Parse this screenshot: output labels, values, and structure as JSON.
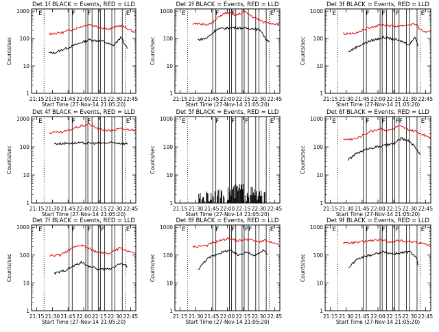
{
  "chart_data": [
    {
      "type": "line",
      "title": "Det 1f BLACK = Events, RED = LLD",
      "xlabel": "Start Time (27-Nov-14 21:05:20)",
      "ylabel": "Counts/sec",
      "x_tick_labels": [
        "21:15",
        "21:30",
        "21:45",
        "22:00",
        "22:15",
        "22:30",
        "22:45"
      ],
      "y_tick_labels": [
        "1",
        "10",
        "100",
        "1000"
      ],
      "ylim": [
        1,
        1200
      ],
      "scale": "log",
      "markers": [
        {
          "label": "E",
          "t": 0.06
        },
        {
          "label": "F",
          "t": 0.38
        },
        {
          "label": "F",
          "t": 0.53
        },
        {
          "label": "E",
          "t": 0.9
        }
      ],
      "series": [
        {
          "color": "#000000",
          "values": [
            [
              0.22,
              30
            ],
            [
              0.4,
              55
            ],
            [
              0.55,
              90
            ],
            [
              0.68,
              80
            ],
            [
              0.78,
              55
            ],
            [
              0.84,
              90
            ],
            [
              0.86,
              120
            ],
            [
              0.89,
              60
            ],
            [
              0.92,
              45
            ]
          ],
          "start": 0.17,
          "end": 0.92
        },
        {
          "color": "#e00000",
          "values": [
            [
              0.17,
              150
            ],
            [
              0.3,
              165
            ],
            [
              0.45,
              250
            ],
            [
              0.55,
              330
            ],
            [
              0.65,
              260
            ],
            [
              0.75,
              220
            ],
            [
              0.85,
              300
            ],
            [
              0.88,
              270
            ],
            [
              1.0,
              160
            ]
          ],
          "start": 0.17,
          "end": 1.0
        }
      ]
    },
    {
      "type": "line",
      "title": "Det 2f BLACK = Events, RED = LLD",
      "xlabel": "Start Time (27-Nov-14 21:05:20)",
      "ylabel": "Counts/sec",
      "x_tick_labels": [
        "21:15",
        "21:30",
        "21:45",
        "22:00",
        "22:15",
        "22:30",
        "22:45"
      ],
      "y_tick_labels": [
        "1",
        "10",
        "100",
        "1000"
      ],
      "ylim": [
        1,
        1200
      ],
      "scale": "log",
      "markers": [
        {
          "label": "E",
          "t": 0.06
        },
        {
          "label": "F",
          "t": 0.38
        },
        {
          "label": "F",
          "t": 0.53
        },
        {
          "label": "E",
          "t": 0.9
        }
      ],
      "series": [
        {
          "color": "#000000",
          "values": [
            [
              0.22,
              90
            ],
            [
              0.3,
              100
            ],
            [
              0.4,
              220
            ],
            [
              0.55,
              250
            ],
            [
              0.65,
              240
            ],
            [
              0.75,
              230
            ],
            [
              0.82,
              200
            ],
            [
              0.86,
              100
            ],
            [
              0.9,
              80
            ]
          ],
          "start": 0.22,
          "end": 0.9
        },
        {
          "color": "#e00000",
          "values": [
            [
              0.17,
              330
            ],
            [
              0.35,
              340
            ],
            [
              0.42,
              650
            ],
            [
              0.5,
              900
            ],
            [
              0.58,
              700
            ],
            [
              0.66,
              950
            ],
            [
              0.75,
              600
            ],
            [
              0.84,
              400
            ],
            [
              1.0,
              330
            ]
          ],
          "start": 0.17,
          "end": 1.0
        }
      ]
    },
    {
      "type": "line",
      "title": "Det 3f BLACK = Events, RED = LLD",
      "xlabel": "Start Time (27-Nov-14 21:05:20)",
      "ylabel": "Counts/sec",
      "x_tick_labels": [
        "21:15",
        "21:30",
        "21:45",
        "22:00",
        "22:15",
        "22:30",
        "22:45"
      ],
      "y_tick_labels": [
        "1",
        "10",
        "100",
        "1000"
      ],
      "ylim": [
        1,
        1200
      ],
      "scale": "log",
      "markers": [
        {
          "label": "E",
          "t": 0.06
        },
        {
          "label": "F",
          "t": 0.38
        },
        {
          "label": "F",
          "t": 0.53
        },
        {
          "label": "F",
          "t": 0.66
        },
        {
          "label": "E",
          "t": 0.9
        }
      ],
      "series": [
        {
          "color": "#000000",
          "values": [
            [
              0.22,
              32
            ],
            [
              0.3,
              50
            ],
            [
              0.42,
              80
            ],
            [
              0.55,
              110
            ],
            [
              0.65,
              95
            ],
            [
              0.72,
              80
            ],
            [
              0.8,
              60
            ],
            [
              0.85,
              120
            ],
            [
              0.88,
              55
            ]
          ],
          "start": 0.22,
          "end": 0.88
        },
        {
          "color": "#e00000",
          "values": [
            [
              0.17,
              150
            ],
            [
              0.3,
              160
            ],
            [
              0.42,
              260
            ],
            [
              0.55,
              320
            ],
            [
              0.65,
              280
            ],
            [
              0.75,
              300
            ],
            [
              0.85,
              340
            ],
            [
              0.92,
              190
            ],
            [
              1.0,
              160
            ]
          ],
          "start": 0.17,
          "end": 1.0
        }
      ]
    },
    {
      "type": "line",
      "title": "Det 4f BLACK = Events, RED = LLD",
      "xlabel": "Start Time (27-Nov-14 21:05:20)",
      "ylabel": "Counts/sec",
      "x_tick_labels": [
        "21:15",
        "21:30",
        "21:45",
        "22:00",
        "22:15",
        "22:30",
        "22:45"
      ],
      "y_tick_labels": [
        "1",
        "10",
        "100",
        "1000"
      ],
      "ylim": [
        1,
        1200
      ],
      "scale": "log",
      "markers": [
        {
          "label": "E",
          "t": 0.06
        },
        {
          "label": "F",
          "t": 0.38
        },
        {
          "label": "F",
          "t": 0.53
        },
        {
          "label": "E",
          "t": 0.9
        }
      ],
      "series": [
        {
          "color": "#000000",
          "values": [
            [
              0.22,
              130
            ],
            [
              0.4,
              138
            ],
            [
              0.6,
              135
            ],
            [
              0.8,
              140
            ],
            [
              0.92,
              130
            ]
          ],
          "start": 0.22,
          "end": 0.92
        },
        {
          "color": "#e00000",
          "values": [
            [
              0.17,
              320
            ],
            [
              0.3,
              330
            ],
            [
              0.45,
              520
            ],
            [
              0.55,
              650
            ],
            [
              0.65,
              420
            ],
            [
              0.75,
              380
            ],
            [
              0.85,
              440
            ],
            [
              1.0,
              400
            ]
          ],
          "start": 0.17,
          "end": 1.0
        }
      ]
    },
    {
      "type": "line",
      "title": "Det 5f BLACK = Events, RED = LLD",
      "xlabel": "Start Time (27-Nov-14 21:05:20)",
      "ylabel": "Counts/sec",
      "x_tick_labels": [
        "21:15",
        "21:30",
        "21:45",
        "22:00",
        "22:15",
        "22:30",
        "22:45"
      ],
      "y_tick_labels": [
        "1",
        "10",
        "100",
        "1000"
      ],
      "ylim": [
        1,
        1200
      ],
      "scale": "log",
      "markers": [
        {
          "label": "E",
          "t": 0.06
        },
        {
          "label": "F",
          "t": 0.38
        },
        {
          "label": "F",
          "t": 0.53
        },
        {
          "label": "F",
          "t": 0.66
        },
        {
          "label": "E",
          "t": 0.9
        }
      ],
      "series": [
        {
          "color": "#000000",
          "values": [
            [
              0.22,
              1.3
            ],
            [
              0.35,
              2.0
            ],
            [
              0.45,
              1.7
            ],
            [
              0.55,
              2.7
            ],
            [
              0.62,
              3.2
            ],
            [
              0.7,
              2.6
            ],
            [
              0.8,
              1.8
            ],
            [
              0.88,
              1.4
            ]
          ],
          "start": 0.22,
          "end": 0.88,
          "noisy": true
        }
      ]
    },
    {
      "type": "line",
      "title": "Det 6f BLACK = Events, RED = LLD",
      "xlabel": "Start Time (27-Nov-14 21:05:20)",
      "ylabel": "Counts/sec",
      "x_tick_labels": [
        "21:15",
        "21:30",
        "21:45",
        "22:00",
        "22:15",
        "22:30",
        "22:45"
      ],
      "y_tick_labels": [
        "1",
        "10",
        "100",
        "1000"
      ],
      "ylim": [
        1,
        1200
      ],
      "scale": "log",
      "markers": [
        {
          "label": "E",
          "t": 0.06
        },
        {
          "label": "F",
          "t": 0.38
        },
        {
          "label": "F",
          "t": 0.53
        },
        {
          "label": "FF",
          "t": 0.66
        },
        {
          "label": "E",
          "t": 0.9
        }
      ],
      "series": [
        {
          "color": "#000000",
          "values": [
            [
              0.22,
              35
            ],
            [
              0.3,
              60
            ],
            [
              0.42,
              90
            ],
            [
              0.55,
              110
            ],
            [
              0.65,
              130
            ],
            [
              0.72,
              200
            ],
            [
              0.8,
              160
            ],
            [
              0.85,
              100
            ],
            [
              0.9,
              55
            ]
          ],
          "start": 0.22,
          "end": 0.9
        },
        {
          "color": "#e00000",
          "values": [
            [
              0.17,
              180
            ],
            [
              0.3,
              200
            ],
            [
              0.42,
              350
            ],
            [
              0.52,
              450
            ],
            [
              0.6,
              380
            ],
            [
              0.7,
              550
            ],
            [
              0.78,
              420
            ],
            [
              0.86,
              350
            ],
            [
              1.0,
              220
            ]
          ],
          "start": 0.17,
          "end": 1.0
        }
      ]
    },
    {
      "type": "line",
      "title": "Det 7f BLACK = Events, RED = LLD",
      "xlabel": "Start Time (27-Nov-14 21:05:20)",
      "ylabel": "Counts/sec",
      "x_tick_labels": [
        "21:15",
        "21:30",
        "21:45",
        "22:00",
        "22:15",
        "22:30",
        "22:45"
      ],
      "y_tick_labels": [
        "1",
        "10",
        "100",
        "1000"
      ],
      "ylim": [
        1,
        1200
      ],
      "scale": "log",
      "markers": [
        {
          "label": "E",
          "t": 0.06
        },
        {
          "label": "F",
          "t": 0.38
        },
        {
          "label": "F",
          "t": 0.53
        },
        {
          "label": "F",
          "t": 0.66
        },
        {
          "label": "E",
          "t": 0.9
        }
      ],
      "series": [
        {
          "color": "#000000",
          "values": [
            [
              0.22,
              22
            ],
            [
              0.3,
              26
            ],
            [
              0.4,
              40
            ],
            [
              0.48,
              55
            ],
            [
              0.55,
              40
            ],
            [
              0.65,
              30
            ],
            [
              0.75,
              32
            ],
            [
              0.85,
              50
            ],
            [
              0.92,
              40
            ]
          ],
          "start": 0.22,
          "end": 0.92
        },
        {
          "color": "#e00000",
          "values": [
            [
              0.17,
              95
            ],
            [
              0.28,
              100
            ],
            [
              0.4,
              180
            ],
            [
              0.48,
              230
            ],
            [
              0.55,
              170
            ],
            [
              0.65,
              120
            ],
            [
              0.75,
              115
            ],
            [
              0.85,
              180
            ],
            [
              1.0,
              110
            ]
          ],
          "start": 0.17,
          "end": 1.0
        }
      ]
    },
    {
      "type": "line",
      "title": "Det 8f BLACK = Events, RED = LLD",
      "xlabel": "Start Time (27-Nov-14 21:05:20)",
      "ylabel": "Counts/sec",
      "x_tick_labels": [
        "21:15",
        "21:30",
        "21:45",
        "22:00",
        "22:15",
        "22:30",
        "22:45"
      ],
      "y_tick_labels": [
        "1",
        "10",
        "100",
        "1000"
      ],
      "ylim": [
        1,
        1200
      ],
      "scale": "log",
      "markers": [
        {
          "label": "E",
          "t": 0.06
        },
        {
          "label": "F",
          "t": 0.38
        },
        {
          "label": "F",
          "t": 0.53
        },
        {
          "label": "FF",
          "t": 0.66
        },
        {
          "label": "E",
          "t": 0.9
        }
      ],
      "series": [
        {
          "color": "#000000",
          "values": [
            [
              0.22,
              30
            ],
            [
              0.3,
              70
            ],
            [
              0.4,
              110
            ],
            [
              0.52,
              150
            ],
            [
              0.6,
              100
            ],
            [
              0.68,
              130
            ],
            [
              0.76,
              90
            ],
            [
              0.84,
              150
            ],
            [
              0.88,
              110
            ]
          ],
          "start": 0.22,
          "end": 0.88
        },
        {
          "color": "#e00000",
          "values": [
            [
              0.17,
              200
            ],
            [
              0.3,
              220
            ],
            [
              0.42,
              330
            ],
            [
              0.52,
              400
            ],
            [
              0.6,
              320
            ],
            [
              0.7,
              380
            ],
            [
              0.78,
              300
            ],
            [
              0.86,
              330
            ],
            [
              1.0,
              220
            ]
          ],
          "start": 0.17,
          "end": 1.0
        }
      ]
    },
    {
      "type": "line",
      "title": "Det 9f BLACK = Events, RED = LLD",
      "xlabel": "Start Time (27-Nov-14 21:05:20)",
      "ylabel": "Counts/sec",
      "x_tick_labels": [
        "21:15",
        "21:30",
        "21:45",
        "22:00",
        "22:15",
        "22:30",
        "22:45"
      ],
      "y_tick_labels": [
        "1",
        "10",
        "100",
        "1000"
      ],
      "ylim": [
        1,
        1200
      ],
      "scale": "log",
      "markers": [
        {
          "label": "E",
          "t": 0.06
        },
        {
          "label": "F",
          "t": 0.38
        },
        {
          "label": "F",
          "t": 0.53
        },
        {
          "label": "F",
          "t": 0.66
        },
        {
          "label": "E",
          "t": 0.9
        }
      ],
      "series": [
        {
          "color": "#000000",
          "values": [
            [
              0.22,
              35
            ],
            [
              0.3,
              70
            ],
            [
              0.42,
              100
            ],
            [
              0.55,
              130
            ],
            [
              0.65,
              110
            ],
            [
              0.72,
              120
            ],
            [
              0.8,
              130
            ],
            [
              0.86,
              90
            ],
            [
              0.88,
              45
            ]
          ],
          "start": 0.22,
          "end": 0.88
        },
        {
          "color": "#e00000",
          "values": [
            [
              0.17,
              260
            ],
            [
              0.3,
              280
            ],
            [
              0.42,
              330
            ],
            [
              0.52,
              350
            ],
            [
              0.6,
              300
            ],
            [
              0.7,
              330
            ],
            [
              0.78,
              310
            ],
            [
              0.86,
              290
            ],
            [
              1.0,
              230
            ]
          ],
          "start": 0.17,
          "end": 1.0
        }
      ]
    }
  ]
}
